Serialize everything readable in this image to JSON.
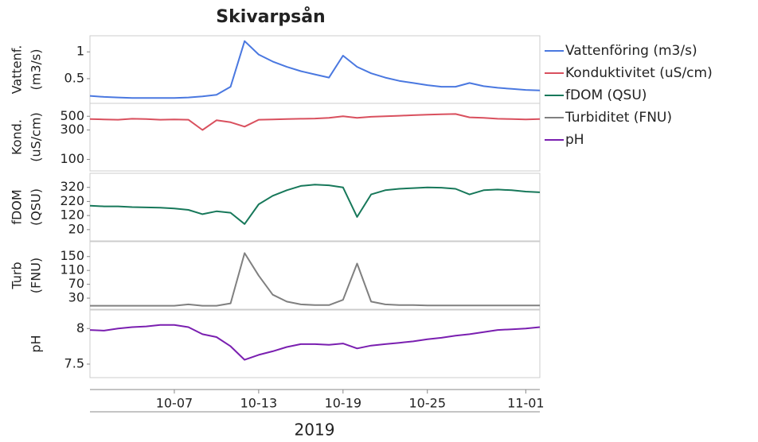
{
  "chart_data": {
    "type": "line",
    "title": "Skivarpsån",
    "x": [
      "2019-10-01",
      "2019-10-02",
      "2019-10-03",
      "2019-10-04",
      "2019-10-05",
      "2019-10-06",
      "2019-10-07",
      "2019-10-08",
      "2019-10-09",
      "2019-10-10",
      "2019-10-11",
      "2019-10-12",
      "2019-10-13",
      "2019-10-14",
      "2019-10-15",
      "2019-10-16",
      "2019-10-17",
      "2019-10-18",
      "2019-10-19",
      "2019-10-20",
      "2019-10-21",
      "2019-10-22",
      "2019-10-23",
      "2019-10-24",
      "2019-10-25",
      "2019-10-26",
      "2019-10-27",
      "2019-10-28",
      "2019-10-29",
      "2019-10-30",
      "2019-10-31",
      "2019-11-01",
      "2019-11-02"
    ],
    "xlim": [
      "2019-10-01",
      "2019-11-02"
    ],
    "xticks": [
      {
        "value": "2019-10-07",
        "label": "10-07"
      },
      {
        "value": "2019-10-13",
        "label": "10-13"
      },
      {
        "value": "2019-10-19",
        "label": "10-19"
      },
      {
        "value": "2019-10-25",
        "label": "10-25"
      },
      {
        "value": "2019-11-01",
        "label": "11-01"
      }
    ],
    "xlabel": "2019",
    "panels": [
      {
        "ylabel": [
          "Vattenf.",
          "(m3/s)"
        ],
        "ylim": [
          0.04,
          1.3
        ],
        "yticks": [
          0.5,
          1
        ],
        "log": false,
        "series": [
          {
            "name": "Vattenföring (m3/s)",
            "color": "#4a78e0",
            "values": [
              0.18,
              0.16,
              0.15,
              0.14,
              0.14,
              0.14,
              0.14,
              0.15,
              0.17,
              0.2,
              0.35,
              1.2,
              0.95,
              0.82,
              0.72,
              0.64,
              0.58,
              0.52,
              0.93,
              0.72,
              0.6,
              0.52,
              0.46,
              0.42,
              0.38,
              0.35,
              0.35,
              0.42,
              0.36,
              0.33,
              0.31,
              0.29,
              0.28
            ]
          }
        ]
      },
      {
        "ylabel": [
          "Kond.",
          "(uS/cm)"
        ],
        "ylim": [
          65,
          810
        ],
        "yticks": [
          100,
          300,
          500
        ],
        "log": true,
        "series": [
          {
            "name": "Konduktivitet (uS/cm)",
            "color": "#d9505e",
            "values": [
              450,
              445,
              440,
              455,
              450,
              440,
              445,
              440,
              300,
              430,
              400,
              340,
              440,
              445,
              450,
              455,
              460,
              470,
              500,
              470,
              490,
              500,
              510,
              520,
              530,
              540,
              545,
              480,
              470,
              455,
              450,
              445,
              450
            ]
          }
        ]
      },
      {
        "ylabel": [
          "fDOM",
          "(QSU)"
        ],
        "ylim": [
          -60,
          420
        ],
        "yticks": [
          20,
          120,
          220,
          320
        ],
        "log": false,
        "series": [
          {
            "name": "fDOM (QSU)",
            "color": "#17785a",
            "values": [
              190,
              185,
              185,
              180,
              178,
              176,
              170,
              160,
              130,
              150,
              140,
              60,
              200,
              260,
              300,
              330,
              340,
              335,
              320,
              110,
              270,
              300,
              310,
              315,
              320,
              318,
              310,
              270,
              300,
              305,
              300,
              290,
              285
            ]
          }
        ]
      },
      {
        "ylabel": [
          "Turb",
          "(FNU)"
        ],
        "ylim": [
          -2,
          193
        ],
        "yticks": [
          30,
          70,
          110,
          150
        ],
        "log": false,
        "series": [
          {
            "name": "Turbiditet (FNU)",
            "color": "#808080",
            "values": [
              8,
              8,
              8,
              8,
              8,
              8,
              8,
              12,
              8,
              8,
              15,
              160,
              95,
              40,
              20,
              12,
              10,
              10,
              25,
              130,
              20,
              12,
              10,
              10,
              9,
              9,
              9,
              9,
              9,
              9,
              9,
              9,
              9
            ]
          }
        ]
      },
      {
        "ylabel": [
          "pH"
        ],
        "ylim": [
          7.31,
          8.26
        ],
        "yticks": [
          7.5,
          8
        ],
        "log": false,
        "series": [
          {
            "name": "pH",
            "color": "#7a1fb0",
            "values": [
              7.98,
              7.97,
              8.0,
              8.02,
              8.03,
              8.05,
              8.05,
              8.02,
              7.92,
              7.88,
              7.75,
              7.56,
              7.63,
              7.68,
              7.74,
              7.78,
              7.78,
              7.77,
              7.79,
              7.72,
              7.76,
              7.78,
              7.8,
              7.82,
              7.85,
              7.87,
              7.9,
              7.92,
              7.95,
              7.98,
              7.99,
              8.0,
              8.02
            ]
          }
        ]
      }
    ]
  }
}
